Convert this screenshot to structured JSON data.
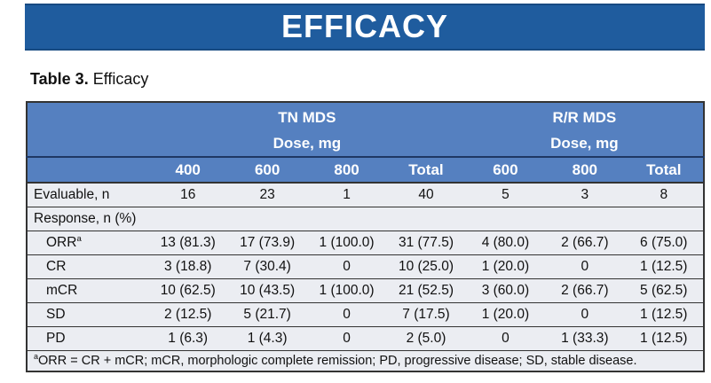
{
  "banner": {
    "title": "EFFICACY"
  },
  "caption": {
    "bold": "Table 3.",
    "rest": " Efficacy"
  },
  "colors": {
    "banner_blue": "#1f5c9e",
    "table_header_blue": "#5580c0",
    "divider_navy": "#1f3864",
    "body_bg": "#ebedf2",
    "border_dark": "#333333"
  },
  "table": {
    "groups": [
      {
        "label": "TN MDS",
        "sublabel": "Dose, mg"
      },
      {
        "label": "R/R MDS",
        "sublabel": "Dose, mg"
      }
    ],
    "columns": [
      "400",
      "600",
      "800",
      "Total",
      "600",
      "800",
      "Total"
    ],
    "rows": [
      {
        "label": "Evaluable, n",
        "sup": "",
        "indent": false,
        "full_span": false,
        "values": [
          "16",
          "23",
          "1",
          "40",
          "5",
          "3",
          "8"
        ]
      },
      {
        "label": "Response, n (%)",
        "sup": "",
        "indent": false,
        "full_span": true,
        "values": []
      },
      {
        "label": "ORR",
        "sup": "a",
        "indent": true,
        "full_span": false,
        "values": [
          "13 (81.3)",
          "17 (73.9)",
          "1 (100.0)",
          "31 (77.5)",
          "4 (80.0)",
          "2 (66.7)",
          "6 (75.0)"
        ]
      },
      {
        "label": "CR",
        "sup": "",
        "indent": true,
        "full_span": false,
        "values": [
          "3 (18.8)",
          "7 (30.4)",
          "0",
          "10 (25.0)",
          "1 (20.0)",
          "0",
          "1 (12.5)"
        ]
      },
      {
        "label": "mCR",
        "sup": "",
        "indent": true,
        "full_span": false,
        "values": [
          "10 (62.5)",
          "10 (43.5)",
          "1 (100.0)",
          "21 (52.5)",
          "3 (60.0)",
          "2 (66.7)",
          "5 (62.5)"
        ]
      },
      {
        "label": "SD",
        "sup": "",
        "indent": true,
        "full_span": false,
        "values": [
          "2 (12.5)",
          "5 (21.7)",
          "0",
          "7 (17.5)",
          "1 (20.0)",
          "0",
          "1 (12.5)"
        ]
      },
      {
        "label": "PD",
        "sup": "",
        "indent": true,
        "full_span": false,
        "values": [
          "1 (6.3)",
          "1 (4.3)",
          "0",
          "2 (5.0)",
          "0",
          "1 (33.3)",
          "1 (12.5)"
        ]
      }
    ],
    "footnote": {
      "marker": "a",
      "text": "ORR = CR + mCR; mCR, morphologic complete remission; PD, progressive disease; SD, stable disease."
    }
  }
}
